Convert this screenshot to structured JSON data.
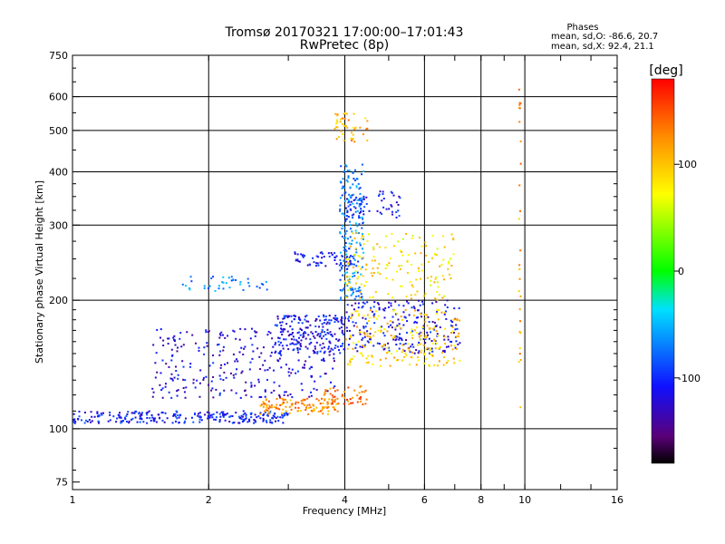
{
  "chart_data": {
    "type": "scatter",
    "title": "Tromsø 20170321 17:00:00–17:01:43",
    "subtitle": "RwPretec (8p)",
    "xlabel": "Frequency [MHz]",
    "ylabel": "Stationary phase Virtual Height [km]",
    "x_scale": "log",
    "y_scale": "log",
    "xlim": [
      1,
      16
    ],
    "ylim": [
      72,
      750
    ],
    "x_ticks": [
      "1",
      "2",
      "4",
      "6",
      "8",
      "10",
      "16"
    ],
    "x_tick_values": [
      1,
      2,
      4,
      6,
      8,
      10,
      16
    ],
    "x_grid_values": [
      1,
      2,
      4,
      6,
      8,
      10,
      16
    ],
    "y_ticks": [
      "75",
      "100",
      "200",
      "300",
      "400",
      "500",
      "600",
      "750"
    ],
    "y_tick_values": [
      75,
      100,
      200,
      300,
      400,
      500,
      600,
      750
    ],
    "y_grid_values": [
      100,
      200,
      300,
      400,
      500,
      600
    ],
    "grid": true,
    "legend": {
      "title": "Phases",
      "line_o": "mean, sd,O: -86.6, 20.7",
      "line_x": "mean, sd,X:  92.4, 21.1"
    },
    "colorbar": {
      "label": "[deg]",
      "range": [
        -180,
        180
      ],
      "ticks": [
        "100",
        "0",
        "-100"
      ],
      "tick_values": [
        100,
        0,
        -100
      ]
    },
    "traces": [
      {
        "name": "",
        "xr": [
          1.0,
          3.0
        ],
        "yr": [
          103,
          110
        ],
        "phase": -105,
        "n": 260
      },
      {
        "name": "",
        "xr": [
          2.6,
          3.9
        ],
        "yr": [
          108,
          118
        ],
        "phase": 125,
        "n": 120
      },
      {
        "name": "",
        "xr": [
          3.6,
          4.5
        ],
        "yr": [
          114,
          126
        ],
        "phase": 140,
        "n": 50
      },
      {
        "name": "",
        "xr": [
          1.5,
          3.8
        ],
        "yr": [
          118,
          172
        ],
        "phase": -120,
        "n": 300
      },
      {
        "name": "",
        "xr": [
          2.8,
          4.0
        ],
        "yr": [
          150,
          185
        ],
        "phase": -110,
        "n": 180
      },
      {
        "name": "",
        "xr": [
          4.0,
          7.2
        ],
        "yr": [
          150,
          200
        ],
        "phase": -115,
        "n": 220
      },
      {
        "name": "",
        "xr": [
          4.0,
          7.2
        ],
        "yr": [
          140,
          190
        ],
        "phase": 95,
        "n": 200
      },
      {
        "name": "",
        "xr": [
          3.9,
          4.4
        ],
        "yr": [
          200,
          420
        ],
        "phase": -70,
        "n": 200
      },
      {
        "name": "",
        "xr": [
          3.1,
          4.2
        ],
        "yr": [
          240,
          260
        ],
        "phase": -110,
        "n": 60
      },
      {
        "name": "",
        "xr": [
          4.0,
          7.0
        ],
        "yr": [
          200,
          290
        ],
        "phase": 85,
        "n": 160
      },
      {
        "name": "",
        "xr": [
          4.0,
          5.3
        ],
        "yr": [
          310,
          360
        ],
        "phase": -110,
        "n": 60
      },
      {
        "name": "",
        "xr": [
          3.8,
          4.5
        ],
        "yr": [
          470,
          550
        ],
        "phase": 110,
        "n": 45
      },
      {
        "name": "",
        "xr": [
          1.75,
          2.7
        ],
        "yr": [
          210,
          228
        ],
        "phase": -65,
        "n": 40
      },
      {
        "name": "",
        "xr": [
          9.7,
          9.8
        ],
        "yr": [
          100,
          650
        ],
        "phase": 115,
        "n": 28
      }
    ]
  }
}
